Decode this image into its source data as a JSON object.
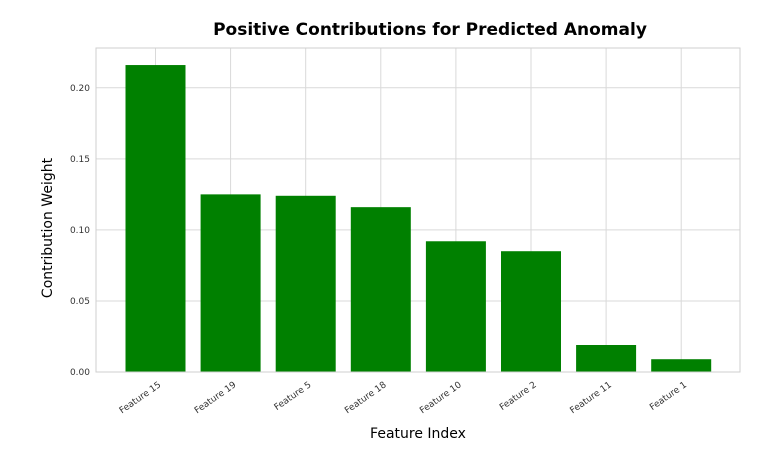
{
  "chart_data": {
    "type": "bar",
    "title": "Positive Contributions  for Predicted Anomaly",
    "xlabel": "Feature Index",
    "ylabel": "Contribution Weight",
    "categories": [
      "Feature 15",
      "Feature 19",
      "Feature 5",
      "Feature 18",
      "Feature 10",
      "Feature 2",
      "Feature 11",
      "Feature 1"
    ],
    "values": [
      0.216,
      0.125,
      0.124,
      0.116,
      0.092,
      0.085,
      0.019,
      0.009
    ],
    "ylim": [
      0,
      0.228
    ],
    "yticks": [
      0.0,
      0.05,
      0.1,
      0.15,
      0.2
    ],
    "ytick_labels": [
      "0.00",
      "0.05",
      "0.10",
      "0.15",
      "0.20"
    ],
    "bar_color": "#008000",
    "grid": true,
    "grid_color": "#d9d9d9"
  }
}
